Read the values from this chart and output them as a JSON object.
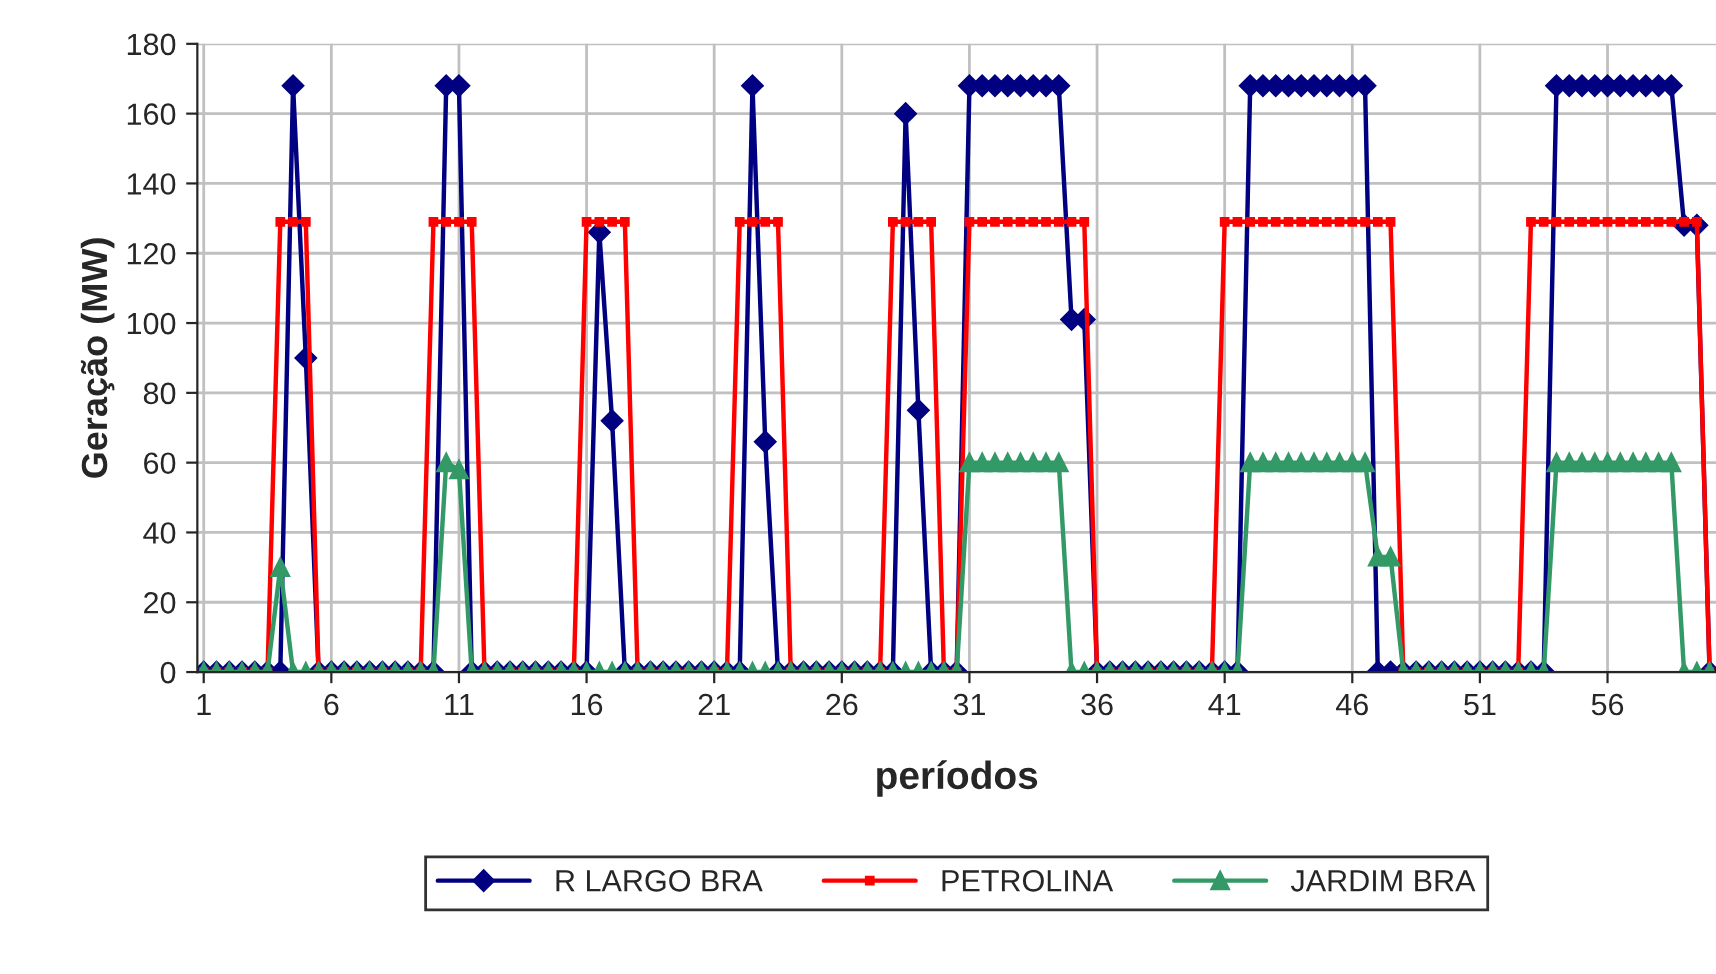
{
  "chart_data": {
    "type": "line",
    "xlabel": "períodos",
    "ylabel": "Geração (MW)",
    "categories": [
      "1",
      null,
      null,
      null,
      null,
      null,
      null,
      null,
      null,
      null,
      "6",
      null,
      null,
      null,
      null,
      null,
      null,
      null,
      null,
      null,
      "11",
      null,
      null,
      null,
      null,
      null,
      null,
      null,
      null,
      null,
      "16",
      null,
      null,
      null,
      null,
      null,
      null,
      null,
      null,
      null,
      "21",
      null,
      null,
      null,
      null,
      null,
      null,
      null,
      null,
      null,
      "26",
      null,
      null,
      null,
      null,
      null,
      null,
      null,
      null,
      null,
      "31",
      null,
      null,
      null,
      null,
      null,
      null,
      null,
      null,
      null,
      "36",
      null,
      null,
      null,
      null,
      null,
      null,
      null,
      null,
      null,
      "41",
      null,
      null,
      null,
      null,
      null,
      null,
      null,
      null,
      null,
      "46",
      null,
      null,
      null,
      null,
      null,
      null,
      null,
      null,
      null,
      "51",
      null,
      null,
      null,
      null,
      null,
      null,
      null,
      null,
      null,
      "56",
      null,
      null,
      null,
      null,
      null,
      null,
      null,
      null
    ],
    "series": [
      {
        "name": "R LARGO BRA",
        "color": "#000080",
        "marker": "diamond",
        "values": [
          0,
          0,
          0,
          0,
          0,
          0,
          0,
          168,
          90,
          0,
          0,
          0,
          0,
          0,
          0,
          0,
          0,
          0,
          0,
          168,
          168,
          0,
          0,
          0,
          0,
          0,
          0,
          0,
          0,
          0,
          0,
          126,
          72,
          0,
          0,
          0,
          0,
          0,
          0,
          0,
          0,
          0,
          0,
          168,
          66,
          0,
          0,
          0,
          0,
          0,
          0,
          0,
          0,
          0,
          0,
          160,
          75,
          0,
          0,
          0,
          168,
          168,
          168,
          168,
          168,
          168,
          168,
          168,
          101,
          101,
          0,
          0,
          0,
          0,
          0,
          0,
          0,
          0,
          0,
          0,
          0,
          0,
          168,
          168,
          168,
          168,
          168,
          168,
          168,
          168,
          168,
          168,
          0,
          0,
          0,
          0,
          0,
          0,
          0,
          0,
          0,
          0,
          0,
          0,
          0,
          0,
          168,
          168,
          168,
          168,
          168,
          168,
          168,
          168,
          168,
          168,
          128,
          128,
          0
        ]
      },
      {
        "name": "PETROLINA",
        "color": "#ff0000",
        "marker": "square",
        "values": [
          0,
          0,
          0,
          0,
          0,
          0,
          129,
          129,
          129,
          0,
          0,
          0,
          0,
          0,
          0,
          0,
          0,
          0,
          129,
          129,
          129,
          129,
          0,
          0,
          0,
          0,
          0,
          0,
          0,
          0,
          129,
          129,
          129,
          129,
          0,
          0,
          0,
          0,
          0,
          0,
          0,
          0,
          129,
          129,
          129,
          129,
          0,
          0,
          0,
          0,
          0,
          0,
          0,
          0,
          129,
          129,
          129,
          129,
          0,
          0,
          129,
          129,
          129,
          129,
          129,
          129,
          129,
          129,
          129,
          129,
          0,
          0,
          0,
          0,
          0,
          0,
          0,
          0,
          0,
          0,
          129,
          129,
          129,
          129,
          129,
          129,
          129,
          129,
          129,
          129,
          129,
          129,
          129,
          129,
          0,
          0,
          0,
          0,
          0,
          0,
          0,
          0,
          0,
          0,
          129,
          129,
          129,
          129,
          129,
          129,
          129,
          129,
          129,
          129,
          129,
          129,
          129,
          129,
          0
        ]
      },
      {
        "name": "JARDIM BRA",
        "color": "#339966",
        "marker": "triangle",
        "values": [
          0,
          0,
          0,
          0,
          0,
          0,
          30,
          0,
          0,
          0,
          0,
          0,
          0,
          0,
          0,
          0,
          0,
          0,
          0,
          60,
          58,
          0,
          0,
          0,
          0,
          0,
          0,
          0,
          0,
          0,
          0,
          0,
          0,
          0,
          0,
          0,
          0,
          0,
          0,
          0,
          0,
          0,
          0,
          0,
          0,
          0,
          0,
          0,
          0,
          0,
          0,
          0,
          0,
          0,
          0,
          0,
          0,
          0,
          0,
          0,
          60,
          60,
          60,
          60,
          60,
          60,
          60,
          60,
          0,
          0,
          0,
          0,
          0,
          0,
          0,
          0,
          0,
          0,
          0,
          0,
          0,
          0,
          60,
          60,
          60,
          60,
          60,
          60,
          60,
          60,
          60,
          60,
          33,
          33,
          0,
          0,
          0,
          0,
          0,
          0,
          0,
          0,
          0,
          0,
          0,
          0,
          60,
          60,
          60,
          60,
          60,
          60,
          60,
          60,
          60,
          60,
          0,
          0,
          0
        ]
      }
    ],
    "ylim": [
      0,
      180
    ],
    "yticks": [
      0,
      20,
      40,
      60,
      80,
      100,
      120,
      140,
      160,
      180
    ],
    "grid": true,
    "legend": "bottom",
    "line_style": "solid"
  }
}
